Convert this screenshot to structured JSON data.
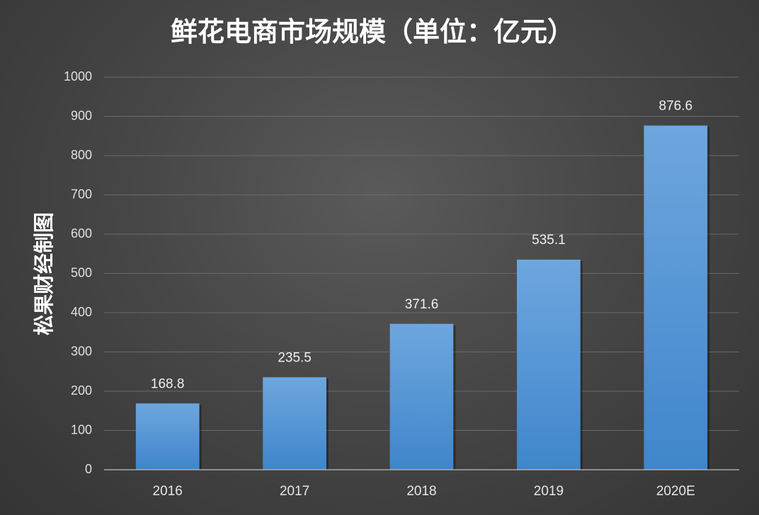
{
  "chart_data": {
    "type": "bar",
    "title": "鲜花电商市场规模（单位：亿元）",
    "ylabel": "松果财经制图",
    "xlabel": "",
    "categories": [
      "2016",
      "2017",
      "2018",
      "2019",
      "2020E"
    ],
    "values": [
      168.8,
      235.5,
      371.6,
      535.1,
      876.6
    ],
    "data_labels": [
      "168.8",
      "235.5",
      "371.6",
      "535.1",
      "876.6"
    ],
    "ylim": [
      0,
      1000
    ],
    "yticks": [
      "0",
      "100",
      "200",
      "300",
      "400",
      "500",
      "600",
      "700",
      "800",
      "900",
      "1000"
    ],
    "grid": true,
    "legend": "none",
    "colors": {
      "bar_top": "#6ea6de",
      "bar_bottom": "#3f86cc",
      "background": "#474747",
      "grid": "#6a6a6a"
    }
  }
}
